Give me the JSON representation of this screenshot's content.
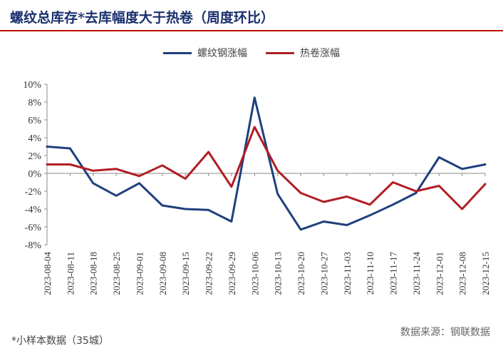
{
  "title": "螺纹总库存*去库幅度大于热卷（周度环比）",
  "legend": [
    {
      "name": "螺纹钢涨幅",
      "color": "#1f3f7e"
    },
    {
      "name": "热卷涨幅",
      "color": "#b01e24"
    }
  ],
  "footnote": "*小样本数据（35城）",
  "source": "数据来源：钢联数据",
  "chart_data": {
    "type": "line",
    "x": [
      "2023-08-04",
      "2023-08-11",
      "2023-08-18",
      "2023-08-25",
      "2023-09-01",
      "2023-09-08",
      "2023-09-15",
      "2023-09-22",
      "2023-09-29",
      "2023-10-06",
      "2023-10-13",
      "2023-10-20",
      "2023-10-27",
      "2023-11-03",
      "2023-11-10",
      "2023-11-17",
      "2023-11-24",
      "2023-12-01",
      "2023-12-08",
      "2023-12-15"
    ],
    "series": [
      {
        "name": "螺纹钢涨幅",
        "color": "#1f3f7e",
        "values": [
          3.0,
          2.8,
          -1.1,
          -2.5,
          -1.1,
          -3.6,
          -4.0,
          -4.1,
          -5.4,
          8.5,
          -2.3,
          -6.3,
          -5.4,
          -5.8,
          -4.7,
          -3.5,
          -2.2,
          1.8,
          0.5,
          1.0
        ]
      },
      {
        "name": "热卷涨幅",
        "color": "#b01e24",
        "values": [
          1.0,
          1.0,
          0.3,
          0.5,
          -0.3,
          0.9,
          -0.6,
          2.4,
          -1.5,
          5.2,
          0.3,
          -2.2,
          -3.2,
          -2.6,
          -3.5,
          -1.0,
          -2.0,
          -1.4,
          -4.0,
          -1.2
        ]
      }
    ],
    "ylim": [
      -8,
      10
    ],
    "yticks": [
      "10%",
      "8%",
      "6%",
      "4%",
      "2%",
      "0%",
      "-2%",
      "-4%",
      "-6%",
      "-8%"
    ],
    "ytick_values": [
      10,
      8,
      6,
      4,
      2,
      0,
      -2,
      -4,
      -6,
      -8
    ],
    "grid": false,
    "legend_position": "top"
  }
}
